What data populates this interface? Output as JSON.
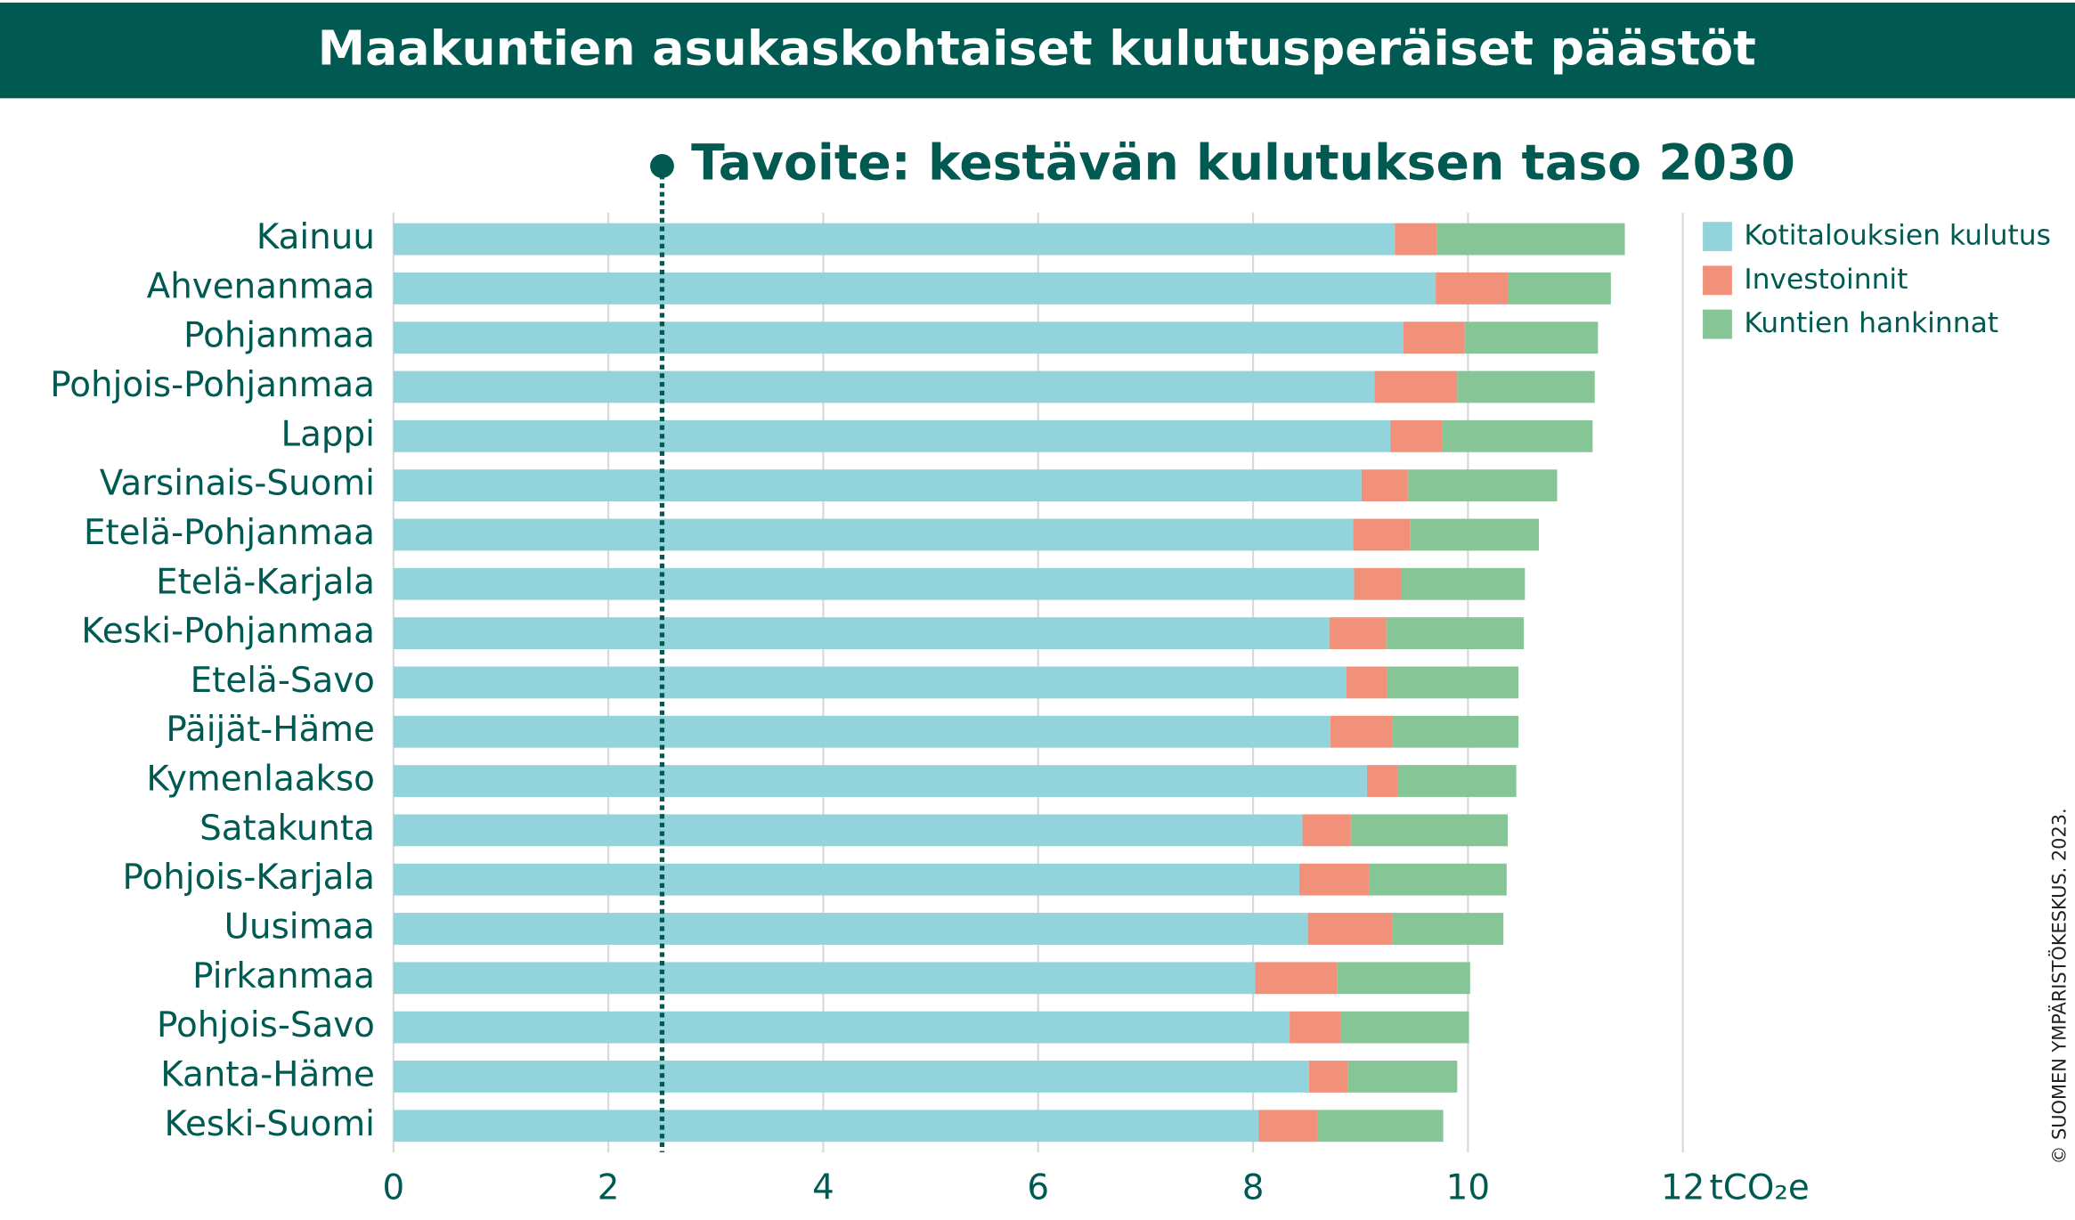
{
  "chart_data": {
    "type": "stacked_bar_horizontal",
    "title": "Maakuntien asukaskohtaiset kulutusperäiset päästöt",
    "annotation": "Tavoite: kestävän kulutuksen taso 2030",
    "target_value": 2.5,
    "x_label": "tCO₂e",
    "credit": "© SUOMEN YMPÄRISTÖKESKUS. 2023.",
    "categories": [
      "Kainuu",
      "Ahvenanmaa",
      "Pohjanmaa",
      "Pohjois-Pohjanmaa",
      "Lappi",
      "Varsinais-Suomi",
      "Etelä-Pohjanmaa",
      "Etelä-Karjala",
      "Keski-Pohjanmaa",
      "Etelä-Savo",
      "Päijät-Häme",
      "Kymenlaakso",
      "Satakunta",
      "Pohjois-Karjala",
      "Uusimaa",
      "Pirkanmaa",
      "Pohjois-Savo",
      "Kanta-Häme",
      "Keski-Suomi"
    ],
    "series": [
      {
        "name": "Kotitalouksien kulutus",
        "color": "#93d4dc",
        "values": [
          9.32,
          9.7,
          9.4,
          9.13,
          9.28,
          9.01,
          8.93,
          8.94,
          8.71,
          8.87,
          8.72,
          9.06,
          8.46,
          8.43,
          8.51,
          8.02,
          8.34,
          8.52,
          8.05
        ]
      },
      {
        "name": "Investoinnit",
        "color": "#f2917a",
        "values": [
          0.39,
          0.67,
          0.57,
          0.77,
          0.48,
          0.43,
          0.53,
          0.44,
          0.53,
          0.38,
          0.58,
          0.29,
          0.45,
          0.65,
          0.79,
          0.76,
          0.48,
          0.36,
          0.55
        ]
      },
      {
        "name": "Kuntien hankinnat",
        "color": "#86c596",
        "values": [
          1.75,
          0.96,
          1.24,
          1.28,
          1.4,
          1.39,
          1.2,
          1.15,
          1.28,
          1.22,
          1.17,
          1.1,
          1.46,
          1.28,
          1.03,
          1.24,
          1.19,
          1.02,
          1.17
        ]
      }
    ],
    "xlim": [
      0,
      12
    ],
    "xticks": [
      0,
      2,
      4,
      6,
      8,
      10,
      12
    ],
    "grid": true,
    "legend": "top-right"
  }
}
